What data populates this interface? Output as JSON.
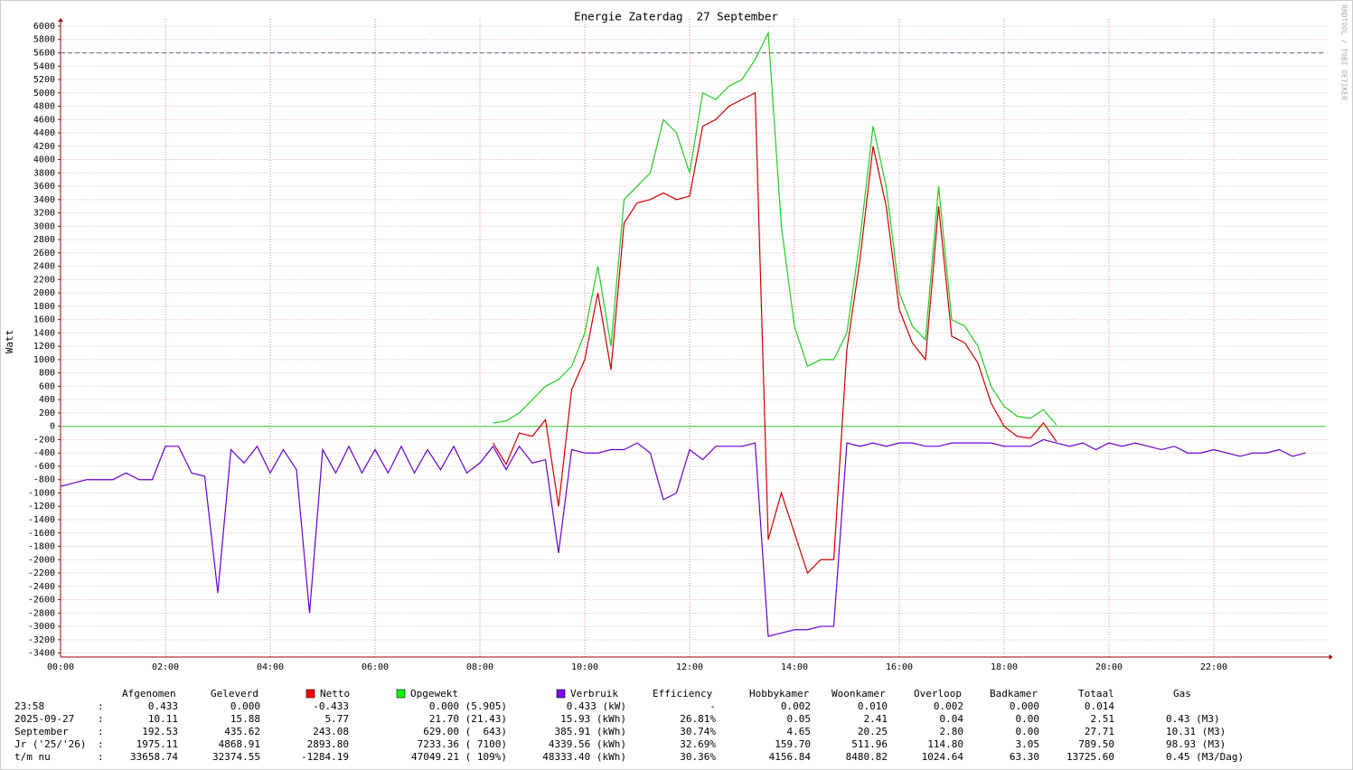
{
  "chart_data": {
    "type": "line",
    "title": "Energie Zaterdag  27 September",
    "y_label": "Watt",
    "side_text": "RRDTOOL / TOBI OETIKER",
    "xlim": [
      0,
      24.2
    ],
    "ylim": [
      -3460,
      6100
    ],
    "xticks": [
      {
        "value": 0,
        "label": "00:00"
      },
      {
        "value": 2,
        "label": "02:00"
      },
      {
        "value": 4,
        "label": "04:00"
      },
      {
        "value": 6,
        "label": "06:00"
      },
      {
        "value": 8,
        "label": "08:00"
      },
      {
        "value": 10,
        "label": "10:00"
      },
      {
        "value": 12,
        "label": "12:00"
      },
      {
        "value": 14,
        "label": "14:00"
      },
      {
        "value": 16,
        "label": "16:00"
      },
      {
        "value": 18,
        "label": "18:00"
      },
      {
        "value": 20,
        "label": "20:00"
      },
      {
        "value": 22,
        "label": "22:00"
      }
    ],
    "yticks": [
      -3400,
      -3200,
      -3000,
      -2800,
      -2600,
      -2400,
      -2200,
      -2000,
      -1800,
      -1600,
      -1400,
      -1200,
      -1000,
      -800,
      -600,
      -400,
      -200,
      0,
      200,
      400,
      600,
      800,
      1000,
      1200,
      1400,
      1600,
      1800,
      2000,
      2200,
      2400,
      2600,
      2800,
      3000,
      3200,
      3400,
      3600,
      3800,
      4000,
      4200,
      4400,
      4600,
      4800,
      5000,
      5200,
      5400,
      5600,
      5800,
      6000
    ],
    "grid": true,
    "reference_line": 5600,
    "x": [
      0,
      0.25,
      0.5,
      0.75,
      1,
      1.25,
      1.5,
      1.75,
      2,
      2.25,
      2.5,
      2.75,
      3,
      3.25,
      3.5,
      3.75,
      4,
      4.25,
      4.5,
      4.75,
      5,
      5.25,
      5.5,
      5.75,
      6,
      6.25,
      6.5,
      6.75,
      7,
      7.25,
      7.5,
      7.75,
      8,
      8.25,
      8.5,
      8.75,
      9,
      9.25,
      9.5,
      9.75,
      10,
      10.25,
      10.5,
      10.75,
      11,
      11.25,
      11.5,
      11.75,
      12,
      12.25,
      12.5,
      12.75,
      13,
      13.25,
      13.5,
      13.75,
      14,
      14.25,
      14.5,
      14.75,
      15,
      15.25,
      15.5,
      15.75,
      16,
      16.25,
      16.5,
      16.75,
      17,
      17.25,
      17.5,
      17.75,
      18,
      18.25,
      18.5,
      18.75,
      19,
      19.25,
      19.5,
      19.75,
      20,
      20.25,
      20.5,
      20.75,
      21,
      21.25,
      21.5,
      21.75,
      22,
      22.25,
      22.5,
      22.75,
      23,
      23.25,
      23.5,
      23.75
    ],
    "series": [
      {
        "name": "Netto",
        "color": "#cc0000",
        "legend_color": "#ff0000",
        "values": [
          null,
          null,
          null,
          null,
          null,
          null,
          null,
          null,
          null,
          null,
          null,
          null,
          null,
          null,
          null,
          null,
          null,
          null,
          null,
          null,
          null,
          null,
          null,
          null,
          null,
          null,
          null,
          null,
          null,
          null,
          null,
          null,
          null,
          -250,
          -570,
          -100,
          -150,
          100,
          -1200,
          550,
          1000,
          2000,
          850,
          3050,
          3350,
          3400,
          3500,
          3400,
          3450,
          4500,
          4600,
          4800,
          4900,
          5000,
          -1700,
          -1000,
          -1600,
          -2200,
          -2000,
          -2000,
          1150,
          2500,
          4200,
          3300,
          1750,
          1250,
          1000,
          3300,
          1350,
          1250,
          950,
          350,
          0,
          -150,
          -180,
          50,
          -230,
          null,
          null,
          null,
          null,
          null,
          null,
          null,
          null,
          null,
          null,
          null,
          null,
          null,
          null,
          null,
          null,
          null,
          null,
          null
        ]
      },
      {
        "name": "Opgewekt",
        "color": "#22cc22",
        "legend_color": "#00ff00",
        "values": [
          null,
          null,
          null,
          null,
          null,
          null,
          null,
          null,
          null,
          null,
          null,
          null,
          null,
          null,
          null,
          null,
          null,
          null,
          null,
          null,
          null,
          null,
          null,
          null,
          null,
          null,
          null,
          null,
          null,
          null,
          null,
          null,
          null,
          50,
          80,
          200,
          400,
          600,
          700,
          900,
          1400,
          2400,
          1200,
          3400,
          3600,
          3800,
          4600,
          4400,
          3800,
          5000,
          4900,
          5100,
          5200,
          5500,
          5900,
          3000,
          1500,
          900,
          1000,
          1000,
          1400,
          2800,
          4500,
          3600,
          2000,
          1500,
          1300,
          3600,
          1600,
          1500,
          1200,
          600,
          300,
          150,
          120,
          250,
          20,
          null,
          null,
          null,
          null,
          null,
          null,
          null,
          null,
          null,
          null,
          null,
          null,
          null,
          null,
          null,
          null,
          null,
          null,
          null
        ]
      },
      {
        "name": "Verbruik",
        "color": "#6600cc",
        "legend_color": "#7f00ff",
        "values": [
          -900,
          -850,
          -800,
          -800,
          -800,
          -700,
          -800,
          -800,
          -300,
          -300,
          -700,
          -750,
          -2500,
          -350,
          -550,
          -300,
          -700,
          -350,
          -650,
          -2800,
          -350,
          -700,
          -300,
          -700,
          -350,
          -700,
          -300,
          -700,
          -350,
          -650,
          -300,
          -700,
          -550,
          -300,
          -650,
          -300,
          -550,
          -500,
          -1900,
          -350,
          -400,
          -400,
          -350,
          -350,
          -250,
          -400,
          -1100,
          -1000,
          -350,
          -500,
          -300,
          -300,
          -300,
          -250,
          -3150,
          -3100,
          -3050,
          -3050,
          -3000,
          -3000,
          -250,
          -300,
          -250,
          -300,
          -250,
          -250,
          -300,
          -300,
          -250,
          -250,
          -250,
          -250,
          -300,
          -300,
          -300,
          -200,
          -250,
          -300,
          -250,
          -350,
          -250,
          -300,
          -250,
          -300,
          -350,
          -300,
          -400,
          -400,
          -350,
          -400,
          -450,
          -400,
          -400,
          -350,
          -450,
          -400
        ]
      }
    ]
  },
  "table": {
    "separator": ":",
    "columns": [
      "Afgenomen",
      "Geleverd",
      "Efficiency",
      "Hobbykamer",
      "Woonkamer",
      "Overloop",
      "Badkamer",
      "Totaal",
      "Gas"
    ],
    "rows": [
      {
        "label": "23:58",
        "values": [
          "0.433",
          "0.000",
          "-0.433",
          "0.000 (5.905)",
          "0.433 (kW)",
          "-",
          "0.002",
          "0.010",
          "0.002",
          "0.000",
          "0.014"
        ]
      },
      {
        "label": "2025-09-27",
        "values": [
          "10.11",
          "15.88",
          "5.77",
          "21.70 (21.43)",
          "15.93 (kWh)",
          "26.81%",
          "0.05",
          "2.41",
          "0.04",
          "0.00",
          "2.51",
          "0.43 (M3)"
        ]
      },
      {
        "label": "September",
        "values": [
          "192.53",
          "435.62",
          "243.08",
          "629.00 (  643)",
          "385.91 (kWh)",
          "30.74%",
          "4.65",
          "20.25",
          "2.80",
          "0.00",
          "27.71",
          "10.31 (M3)"
        ]
      },
      {
        "label": "Jr ('25/'26)",
        "values": [
          "1975.11",
          "4868.91",
          "2893.80",
          "7233.36 ( 7100)",
          "4339.56 (kWh)",
          "32.69%",
          "159.70",
          "511.96",
          "114.80",
          "3.05",
          "789.50",
          "98.93 (M3)"
        ]
      },
      {
        "label": "t/m nu",
        "values": [
          "33658.74",
          "32374.55",
          "-1284.19",
          "47049.21 ( 109%)",
          "48333.40 (kWh)",
          "30.36%",
          "4156.84",
          "8480.82",
          "1024.64",
          "63.30",
          "13725.60",
          "0.45 (M3/Dag)"
        ]
      }
    ]
  }
}
